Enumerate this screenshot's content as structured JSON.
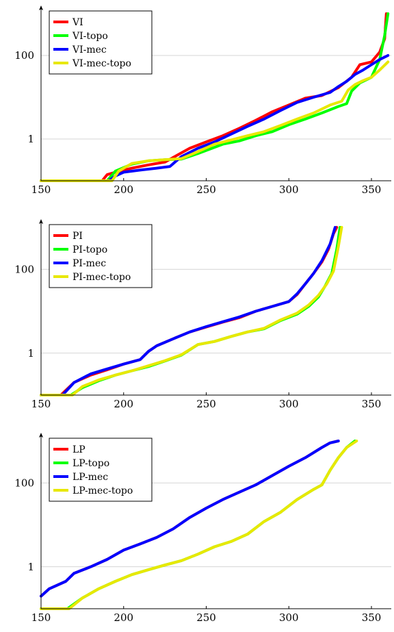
{
  "chart_data": [
    {
      "type": "line",
      "y_scale": "log",
      "xlim": [
        150,
        362
      ],
      "ylim": [
        0.1,
        1000
      ],
      "xticks": [
        150,
        200,
        250,
        300,
        350
      ],
      "x_tick_labels": [
        "150",
        "200",
        "250",
        "300",
        "350"
      ],
      "yticks": [
        1,
        100
      ],
      "y_tick_labels": [
        "1",
        "100"
      ],
      "grid": "horizontal",
      "legend_position": "top-left",
      "series": [
        {
          "name": "VI",
          "color": "#ff0000",
          "x": [
            150,
            187,
            190,
            195,
            205,
            215,
            225,
            232,
            240,
            250,
            260,
            270,
            280,
            290,
            300,
            310,
            320,
            330,
            338,
            343,
            350,
            355,
            358,
            359
          ],
          "y": [
            0.1,
            0.1,
            0.14,
            0.16,
            0.2,
            0.24,
            0.28,
            0.4,
            0.6,
            0.85,
            1.2,
            1.8,
            2.8,
            4.5,
            6.5,
            9.5,
            11,
            17,
            30,
            60,
            70,
            120,
            250,
            1000
          ]
        },
        {
          "name": "VI-topo",
          "color": "#00ff00",
          "x": [
            150,
            190,
            195,
            205,
            215,
            225,
            235,
            245,
            260,
            270,
            280,
            290,
            300,
            310,
            320,
            330,
            335,
            338,
            343,
            350,
            355,
            358,
            360
          ],
          "y": [
            0.1,
            0.1,
            0.17,
            0.25,
            0.3,
            0.32,
            0.33,
            0.45,
            0.75,
            0.9,
            1.2,
            1.5,
            2.2,
            3,
            4.2,
            6,
            7,
            14,
            22,
            30,
            80,
            300,
            1000
          ]
        },
        {
          "name": "VI-mec",
          "color": "#0000ff",
          "x": [
            150,
            191,
            195,
            200,
            210,
            220,
            228,
            235,
            245,
            255,
            265,
            275,
            285,
            295,
            305,
            315,
            325,
            330,
            335,
            340,
            345,
            350,
            355,
            360
          ],
          "y": [
            0.1,
            0.1,
            0.13,
            0.16,
            0.18,
            0.2,
            0.22,
            0.38,
            0.6,
            0.85,
            1.3,
            2,
            3,
            4.8,
            7.5,
            10,
            13,
            18,
            24,
            35,
            45,
            60,
            80,
            100
          ]
        },
        {
          "name": "VI-mec-topo",
          "color": "#e8e800",
          "x": [
            150,
            193,
            197,
            205,
            215,
            225,
            235,
            245,
            255,
            265,
            275,
            285,
            295,
            305,
            315,
            325,
            332,
            336,
            340,
            345,
            350,
            355,
            360
          ],
          "y": [
            0.1,
            0.1,
            0.17,
            0.26,
            0.3,
            0.32,
            0.34,
            0.5,
            0.75,
            0.95,
            1.2,
            1.5,
            2.1,
            3,
            4.2,
            6.5,
            8,
            15,
            20,
            25,
            30,
            45,
            70
          ]
        }
      ]
    },
    {
      "type": "line",
      "y_scale": "log",
      "xlim": [
        150,
        362
      ],
      "ylim": [
        0.1,
        1000
      ],
      "xticks": [
        150,
        200,
        250,
        300,
        350
      ],
      "x_tick_labels": [
        "150",
        "200",
        "250",
        "300",
        "350"
      ],
      "yticks": [
        1,
        100
      ],
      "y_tick_labels": [
        "1",
        "100"
      ],
      "grid": "horizontal",
      "legend_position": "top-left",
      "series": [
        {
          "name": "PI",
          "color": "#ff0000",
          "x": [
            150,
            162,
            170,
            180,
            190,
            200,
            210,
            215,
            220,
            230,
            240,
            250,
            260,
            270,
            280,
            290,
            300,
            305,
            310,
            315,
            320,
            324,
            327,
            329
          ],
          "y": [
            0.1,
            0.1,
            0.2,
            0.3,
            0.4,
            0.55,
            0.7,
            1.1,
            1.5,
            2.2,
            3.2,
            4.2,
            5.5,
            7,
            10,
            13,
            17,
            25,
            45,
            80,
            150,
            300,
            700,
            1000
          ]
        },
        {
          "name": "PI-topo",
          "color": "#00ff00",
          "x": [
            150,
            168,
            175,
            185,
            195,
            205,
            215,
            225,
            235,
            245,
            255,
            265,
            275,
            285,
            295,
            305,
            312,
            318,
            322,
            326,
            329,
            331
          ],
          "y": [
            0.1,
            0.1,
            0.15,
            0.22,
            0.3,
            0.38,
            0.48,
            0.65,
            0.9,
            1.6,
            1.9,
            2.5,
            3.2,
            3.8,
            6,
            8.5,
            13,
            22,
            40,
            80,
            300,
            1000
          ]
        },
        {
          "name": "PI-mec",
          "color": "#0000ff",
          "x": [
            150,
            163,
            170,
            180,
            190,
            200,
            210,
            215,
            220,
            230,
            240,
            250,
            260,
            270,
            280,
            290,
            300,
            305,
            310,
            315,
            320,
            325,
            328
          ],
          "y": [
            0.1,
            0.1,
            0.2,
            0.32,
            0.42,
            0.55,
            0.7,
            1.1,
            1.5,
            2.2,
            3.2,
            4.3,
            5.6,
            7.3,
            10,
            13,
            17,
            26,
            45,
            80,
            160,
            400,
            1000
          ]
        },
        {
          "name": "PI-mec-topo",
          "color": "#e8e800",
          "x": [
            150,
            169,
            175,
            185,
            195,
            205,
            215,
            225,
            235,
            245,
            255,
            265,
            275,
            285,
            295,
            305,
            312,
            318,
            323,
            327,
            330,
            332
          ],
          "y": [
            0.1,
            0.1,
            0.16,
            0.23,
            0.3,
            0.38,
            0.5,
            0.66,
            0.92,
            1.6,
            1.9,
            2.5,
            3.2,
            3.9,
            6.2,
            9,
            14,
            24,
            45,
            90,
            350,
            1000
          ]
        }
      ]
    },
    {
      "type": "line",
      "y_scale": "log",
      "xlim": [
        150,
        362
      ],
      "ylim": [
        0.1,
        1000
      ],
      "xticks": [
        150,
        200,
        250,
        300,
        350
      ],
      "x_tick_labels": [
        "150",
        "200",
        "250",
        "300",
        "350"
      ],
      "yticks": [
        1,
        100
      ],
      "y_tick_labels": [
        "1",
        "100"
      ],
      "grid": "horizontal",
      "legend_position": "top-left",
      "series": [
        {
          "name": "LP",
          "color": "#ff0000",
          "x": [
            150,
            155,
            165,
            170,
            180,
            190,
            200,
            210,
            220,
            230,
            240,
            250,
            260,
            270,
            280,
            290,
            300,
            310,
            320,
            325,
            330
          ],
          "y": [
            0.2,
            0.3,
            0.45,
            0.7,
            1,
            1.5,
            2.5,
            3.5,
            5,
            8,
            15,
            25,
            40,
            60,
            90,
            150,
            250,
            400,
            700,
            900,
            1000
          ]
        },
        {
          "name": "LP-topo",
          "color": "#00ff00",
          "x": [
            150,
            166,
            175,
            185,
            195,
            205,
            215,
            225,
            235,
            245,
            255,
            265,
            275,
            285,
            295,
            305,
            315,
            320,
            325,
            330,
            335,
            340
          ],
          "y": [
            0.1,
            0.1,
            0.18,
            0.3,
            0.45,
            0.65,
            0.85,
            1.1,
            1.4,
            2,
            3,
            4,
            6,
            12,
            20,
            40,
            70,
            90,
            200,
            400,
            700,
            1000
          ]
        },
        {
          "name": "LP-mec",
          "color": "#0000ff",
          "x": [
            150,
            155,
            165,
            170,
            180,
            190,
            200,
            210,
            220,
            230,
            240,
            250,
            260,
            270,
            280,
            290,
            300,
            310,
            320,
            325,
            330
          ],
          "y": [
            0.2,
            0.3,
            0.45,
            0.7,
            1,
            1.5,
            2.5,
            3.5,
            5,
            8,
            15,
            25,
            40,
            60,
            90,
            150,
            250,
            400,
            700,
            900,
            1000
          ]
        },
        {
          "name": "LP-mec-topo",
          "color": "#e8e800",
          "x": [
            150,
            167,
            175,
            185,
            195,
            205,
            215,
            225,
            235,
            245,
            255,
            265,
            275,
            285,
            295,
            305,
            315,
            320,
            325,
            330,
            335,
            341
          ],
          "y": [
            0.1,
            0.1,
            0.18,
            0.3,
            0.45,
            0.65,
            0.85,
            1.1,
            1.4,
            2,
            3,
            4,
            6,
            12,
            20,
            40,
            70,
            90,
            200,
            400,
            700,
            1000
          ]
        }
      ]
    }
  ]
}
